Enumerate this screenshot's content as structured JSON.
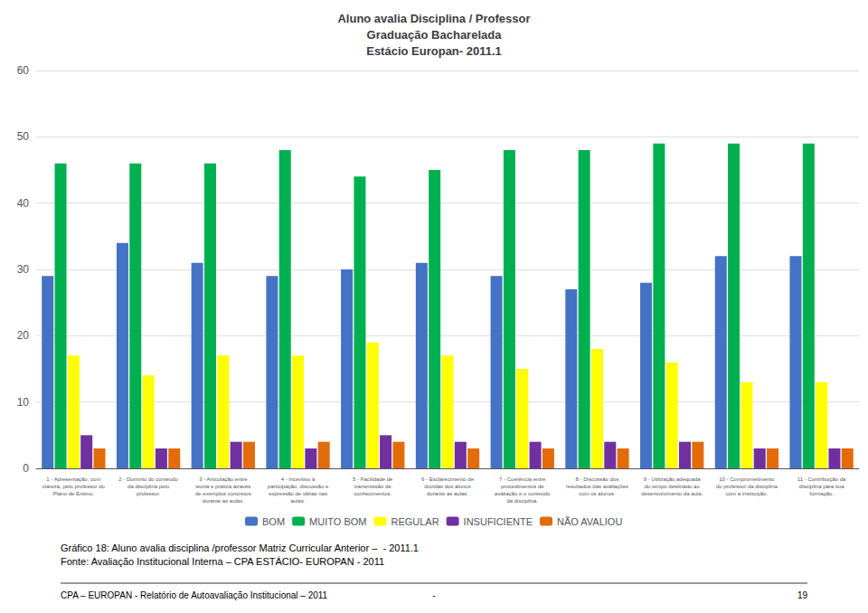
{
  "chart_data": {
    "type": "bar",
    "title": "Aluno avalia Disciplina / Professor\nGraduação Bacharelada\nEstácio Europan- 2011.1",
    "categories": [
      "1 - Apresentação, com\nclareza, pelo professor do\nPlano de Ensino.",
      "2 - Domínio do conteúdo\nda disciplina pelo\nprofessor.",
      "3 - Articulação entre\nteoria e prática através\nde exemplos concretos\ndurante as aulas.",
      "4 - Incentivo à\nparticipação, discussão e\nexpressão de idéias nas\naulas.",
      "5 - Facilidade de\ntransmissão de\nconhecimentos.",
      "6 - Esclarecimento de\ndúvidas dos alunos\ndurante as aulas.",
      "7 - Coerência entre\nprocedimentos de\navaliação e o conteúdo\nda disciplina.",
      "8 - Discussão dos\nresultados das avaliações\ncom os alunos.",
      "9 - Utilização adequada\ndo tempo destinado ao\ndesenvolvimento da aula.",
      "10 - Comprometimento\ndo professor da disciplina\ncom a instituição.",
      "11 - Contribuição da\ndisciplina para sua\nformação."
    ],
    "series": [
      {
        "name": "BOM",
        "color": "#4472c4",
        "values": [
          29,
          34,
          31,
          29,
          30,
          31,
          29,
          27,
          28,
          32,
          32
        ]
      },
      {
        "name": "MUITO BOM",
        "color": "#00b050",
        "values": [
          46,
          46,
          46,
          48,
          44,
          45,
          48,
          48,
          49,
          49,
          49
        ]
      },
      {
        "name": "REGULAR",
        "color": "#ffff00",
        "values": [
          17,
          14,
          17,
          17,
          19,
          17,
          15,
          18,
          16,
          13,
          13
        ]
      },
      {
        "name": "INSUFICIENTE",
        "color": "#7030a0",
        "values": [
          5,
          3,
          4,
          3,
          5,
          4,
          4,
          4,
          4,
          3,
          3
        ]
      },
      {
        "name": "NÃO AVALIOU",
        "color": "#e26b0a",
        "values": [
          3,
          3,
          4,
          4,
          4,
          3,
          3,
          3,
          4,
          3,
          3
        ]
      }
    ],
    "ylim": [
      0,
      60
    ],
    "yticks": [
      0,
      10,
      20,
      30,
      40,
      50,
      60
    ],
    "grid": true,
    "legend": "bottom",
    "annotations": [
      "Gráfico 18: Aluno avalia disciplina /professor Matriz Curricular Anterior –  - 2011.1\nFonte: Avaliação Institucional Interna – CPA ESTÁCIO- EUROPAN - 2011",
      "CPA – EUROPAN - Relatório de Autoavaliação Institucional – 2011",
      "-",
      "19"
    ]
  }
}
